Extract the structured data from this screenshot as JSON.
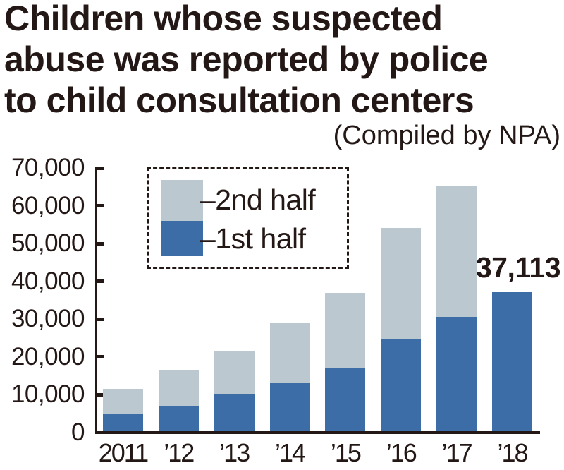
{
  "header": {
    "title": "Children whose suspected\nabuse was reported by police\nto child consultation centers",
    "credit": "(Compiled by NPA)"
  },
  "legend": {
    "items": [
      {
        "label": "–2nd half",
        "series": "2nd half",
        "color": "#bcc8d0"
      },
      {
        "label": "–1st half",
        "series": "1st half",
        "color": "#3d6da6"
      }
    ]
  },
  "chart_data": {
    "type": "bar",
    "stacked": true,
    "categories": [
      "2011",
      "’12",
      "’13",
      "’14",
      "’15",
      "’16",
      "’17",
      "’18"
    ],
    "series": [
      {
        "name": "1st half",
        "color": "#3d6da6",
        "values": [
          5000,
          7000,
          10000,
          13000,
          17100,
          24800,
          30600,
          37113
        ]
      },
      {
        "name": "2nd half",
        "color": "#bcc8d0",
        "values": [
          6500,
          9400,
          11600,
          15900,
          19900,
          29400,
          34800,
          0
        ]
      }
    ],
    "approx_totals": [
      11500,
      16400,
      21600,
      28900,
      37000,
      54200,
      65400,
      37113
    ],
    "ylim": [
      0,
      70000
    ],
    "ytick_step": 10000,
    "ytick_labels": [
      "0",
      "10,000",
      "20,000",
      "30,000",
      "40,000",
      "50,000",
      "60,000",
      "70,000"
    ],
    "grid": false,
    "legend_position": "upper-left-inside",
    "annotations": [
      {
        "text": "37,113",
        "category": "’18",
        "value": 37113
      }
    ]
  },
  "colors": {
    "text": "#231815",
    "axis": "#231815",
    "first_half": "#3d6da6",
    "second_half": "#bcc8d0",
    "background": "#ffffff"
  }
}
